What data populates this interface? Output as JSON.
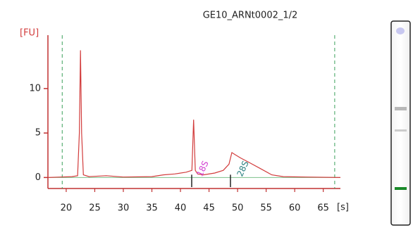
{
  "chart_data": {
    "type": "line",
    "title": "GE10_ARNt0002_1/2",
    "y_label": "[FU]",
    "x_label": "[s]",
    "x": [
      16.8,
      19,
      21,
      22,
      22.3,
      22.5,
      22.7,
      23,
      24,
      27,
      30,
      35,
      37,
      39,
      41,
      42,
      42.3,
      42.6,
      43,
      44,
      46,
      47.5,
      48.5,
      49,
      49.5,
      50.5,
      52,
      54,
      56,
      58,
      62,
      68
    ],
    "values": [
      0,
      0.05,
      0.1,
      0.2,
      5,
      14.3,
      5,
      0.3,
      0.1,
      0.2,
      0.05,
      0.1,
      0.3,
      0.4,
      0.6,
      0.8,
      6.5,
      0.8,
      0.4,
      0.3,
      0.5,
      0.8,
      1.5,
      2.8,
      2.6,
      2.2,
      1.7,
      1.0,
      0.3,
      0.1,
      0.05,
      0
    ],
    "color": "#d23c3c",
    "xlim": [
      16.8,
      68
    ],
    "ylim": [
      -1,
      16
    ],
    "xticks": [
      20,
      25,
      30,
      35,
      40,
      45,
      50,
      55,
      60,
      65
    ],
    "yticks": [
      0,
      5,
      10
    ],
    "vlines": [
      19.3,
      67
    ],
    "vline_color": "#3aa05a",
    "annotations": [
      {
        "text": "18S",
        "color": "#d040d0"
      },
      {
        "text": "28S",
        "color": "#2a8080"
      }
    ]
  }
}
